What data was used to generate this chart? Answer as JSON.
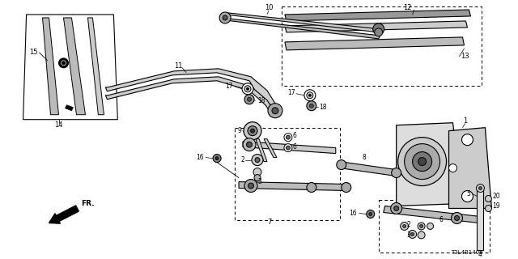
{
  "background_color": "#ffffff",
  "line_color": "#000000",
  "part_number_code": "T3L4B1400",
  "gray_light": "#cccccc",
  "gray_mid": "#999999",
  "gray_dark": "#555555",
  "gray_fill": "#dddddd"
}
